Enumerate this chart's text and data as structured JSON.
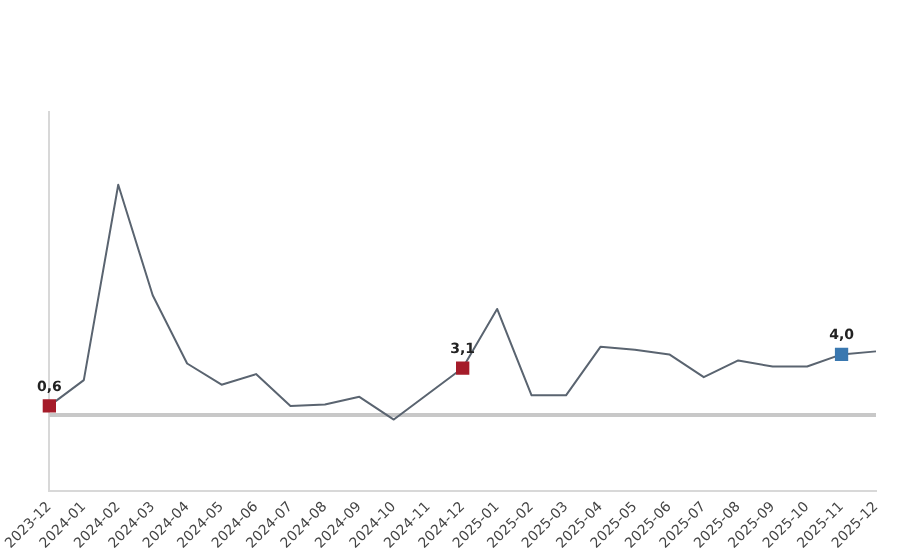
{
  "chart_data": {
    "type": "line",
    "categories": [
      "2023-12",
      "2024-01",
      "2024-02",
      "2024-03",
      "2024-04",
      "2024-05",
      "2024-06",
      "2024-07",
      "2024-08",
      "2024-09",
      "2024-10",
      "2024-11",
      "2024-12",
      "2025-01",
      "2025-02",
      "2025-03",
      "2025-04",
      "2025-05",
      "2025-06",
      "2025-07",
      "2025-08",
      "2025-09",
      "2025-10",
      "2025-11",
      "2025-12"
    ],
    "series": [
      {
        "color": "#5a6470",
        "values": [
          0.6,
          2.3,
          15.2,
          7.9,
          3.4,
          2.0,
          2.7,
          0.6,
          0.7,
          1.2,
          -0.3,
          1.4,
          3.1,
          7.0,
          1.3,
          1.3,
          4.5,
          4.3,
          4.0,
          2.5,
          3.6,
          3.2,
          3.2,
          4.0,
          4.2
        ],
        "value_labels": [
          "0,6",
          null,
          null,
          null,
          null,
          null,
          null,
          null,
          null,
          null,
          null,
          null,
          "3,1",
          null,
          null,
          null,
          null,
          null,
          null,
          null,
          null,
          null,
          null,
          "4,0",
          null
        ],
        "colors": [
          "#a51c2a",
          "#5a6470",
          "#5a6470",
          "#5a6470",
          "#5a6470",
          "#5a6470",
          "#5a6470",
          "#5a6470",
          "#5a6470",
          "#5a6470",
          "#5a6470",
          "#5a6470",
          "#a51c2a",
          "#5a6470",
          "#5a6470",
          "#5a6470",
          "#5a6470",
          "#5a6470",
          "#5a6470",
          "#5a6470",
          "#5a6470",
          "#5a6470",
          "#5a6470",
          "#3a78b0",
          "#5a6470"
        ]
      }
    ],
    "ylim": [
      -5,
      20
    ],
    "tick_labels": "x",
    "grid": false,
    "legend": false,
    "ref_lines": [
      {
        "axis": "y",
        "value": 0,
        "color": "#c8c8c8"
      }
    ]
  }
}
